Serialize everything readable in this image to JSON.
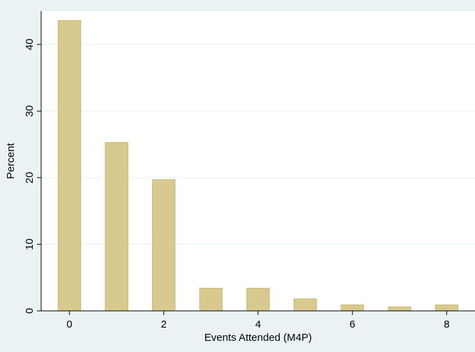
{
  "colors": {
    "background": "#eaf2f3",
    "plot_background": "#ffffff",
    "bar_fill": "#d8c98f",
    "bar_stroke": "#c8b878",
    "gridline": "#eaf2f3",
    "axis": "#000000"
  },
  "chart_data": {
    "type": "bar",
    "title": "",
    "xlabel": "Events Attended (M4P)",
    "ylabel": "Percent",
    "x": [
      0,
      1,
      2,
      3,
      4,
      5,
      6,
      7,
      8
    ],
    "values": [
      43.6,
      25.3,
      19.7,
      3.4,
      3.4,
      1.8,
      0.9,
      0.6,
      0.9
    ],
    "xlim": [
      -0.6,
      8.6
    ],
    "ylim": [
      0,
      45
    ],
    "xticks": [
      0,
      2,
      4,
      6,
      8
    ],
    "yticks": [
      0,
      10,
      20,
      30,
      40
    ],
    "xtick_labels": [
      "0",
      "2",
      "4",
      "6",
      "8"
    ],
    "ytick_labels": [
      "0",
      "10",
      "20",
      "30",
      "40"
    ],
    "grid": true,
    "legend": "none"
  }
}
